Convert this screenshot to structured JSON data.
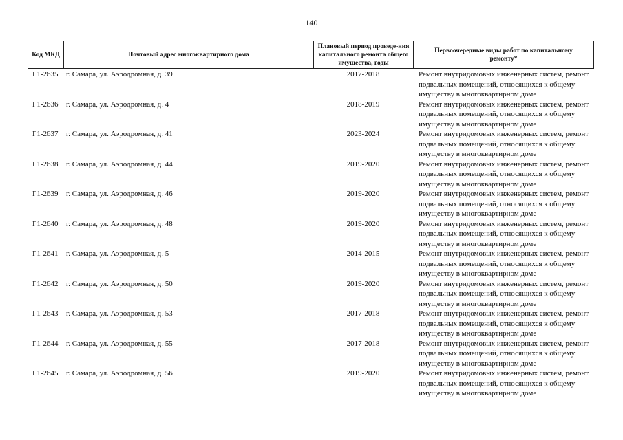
{
  "page_number": "140",
  "headers": [
    "Код МКД",
    "Почтовый адрес многоквартирного дома",
    "Плановый период проведе-ния капитального ремонта общего имущества, годы",
    "Первоочередные виды работ по капитальному ремонту*"
  ],
  "rows": [
    {
      "code": "Г1-2635",
      "address": "г. Самара, ул. Аэродромная, д. 39",
      "period": "2017-2018",
      "works": "Ремонт внутридомовых инженерных систем, ремонт подвальных помещений, относящихся к общему имуществу в многоквартирном доме"
    },
    {
      "code": "Г1-2636",
      "address": "г. Самара, ул. Аэродромная, д. 4",
      "period": "2018-2019",
      "works": "Ремонт внутридомовых инженерных систем, ремонт подвальных помещений, относящихся к общему имуществу в многоквартирном доме"
    },
    {
      "code": "Г1-2637",
      "address": "г. Самара, ул. Аэродромная, д. 41",
      "period": "2023-2024",
      "works": "Ремонт внутридомовых инженерных систем, ремонт подвальных помещений, относящихся к общему имуществу в многоквартирном доме"
    },
    {
      "code": "Г1-2638",
      "address": "г. Самара, ул. Аэродромная, д. 44",
      "period": "2019-2020",
      "works": "Ремонт внутридомовых инженерных систем, ремонт подвальных помещений, относящихся к общему имуществу в многоквартирном доме"
    },
    {
      "code": "Г1-2639",
      "address": "г. Самара, ул. Аэродромная, д. 46",
      "period": "2019-2020",
      "works": "Ремонт внутридомовых инженерных систем, ремонт подвальных помещений, относящихся к общему имуществу в многоквартирном доме"
    },
    {
      "code": "Г1-2640",
      "address": "г. Самара, ул. Аэродромная, д. 48",
      "period": "2019-2020",
      "works": "Ремонт внутридомовых инженерных систем, ремонт подвальных помещений, относящихся к общему имуществу в многоквартирном доме"
    },
    {
      "code": "Г1-2641",
      "address": "г. Самара, ул. Аэродромная, д. 5",
      "period": "2014-2015",
      "works": "Ремонт внутридомовых инженерных систем, ремонт подвальных помещений, относящихся к общему имуществу в многоквартирном доме"
    },
    {
      "code": "Г1-2642",
      "address": "г. Самара, ул. Аэродромная, д. 50",
      "period": "2019-2020",
      "works": "Ремонт внутридомовых инженерных систем, ремонт подвальных помещений, относящихся к общему имуществу в многоквартирном доме"
    },
    {
      "code": "Г1-2643",
      "address": "г. Самара, ул. Аэродромная, д. 53",
      "period": "2017-2018",
      "works": "Ремонт внутридомовых инженерных систем, ремонт подвальных помещений, относящихся к общему имуществу в многоквартирном доме"
    },
    {
      "code": "Г1-2644",
      "address": "г. Самара, ул. Аэродромная, д. 55",
      "period": "2017-2018",
      "works": "Ремонт внутридомовых инженерных систем, ремонт подвальных помещений, относящихся к общему имуществу в многоквартирном доме"
    },
    {
      "code": "Г1-2645",
      "address": "г. Самара, ул. Аэродромная, д. 56",
      "period": "2019-2020",
      "works": "Ремонт внутридомовых инженерных систем, ремонт подвальных помещений, относящихся к общему имуществу в многоквартирном доме"
    }
  ]
}
